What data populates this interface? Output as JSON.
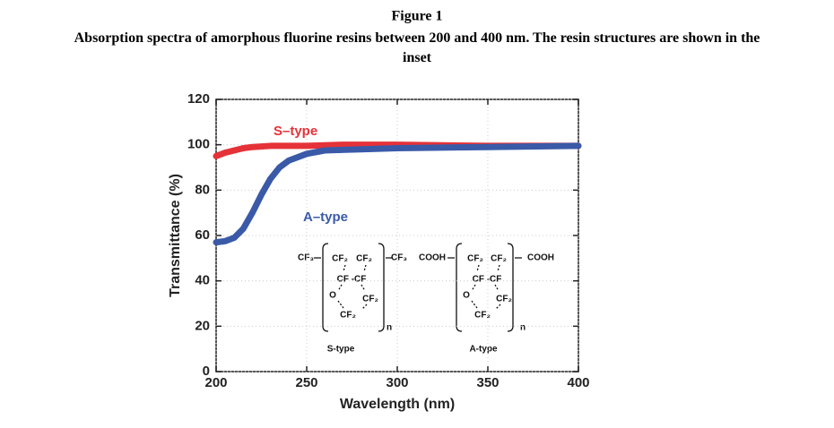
{
  "chart_data": {
    "type": "line",
    "title": "Figure 1",
    "subtitle": "Absorption spectra of amorphous fluorine resins between 200 and 400 nm. The resin structures are shown in the inset",
    "x_label": "Wavelength (nm)",
    "y_label": "Transmittance (%)",
    "xlim": [
      200,
      400
    ],
    "xticks": [
      200,
      250,
      300,
      350,
      400
    ],
    "ylim": [
      0,
      120
    ],
    "yticks": [
      0,
      20,
      40,
      60,
      80,
      100,
      120
    ],
    "grid": true,
    "series": [
      {
        "name": "S–type",
        "color": "#e53238",
        "x": [
          200,
          205,
          210,
          215,
          220,
          230,
          240,
          250,
          270,
          290,
          300,
          320,
          350,
          380,
          400
        ],
        "values": [
          95,
          96.5,
          97.5,
          98.5,
          99,
          99.5,
          99.5,
          99.5,
          100,
          100,
          100,
          99.8,
          99.5,
          99.5,
          99.5
        ]
      },
      {
        "name": "A–type",
        "color": "#3a5aa8",
        "x": [
          200,
          205,
          210,
          215,
          220,
          225,
          230,
          235,
          240,
          250,
          260,
          280,
          300,
          350,
          400
        ],
        "values": [
          57,
          57.5,
          59,
          63,
          70,
          78,
          85,
          90,
          93,
          96,
          97.5,
          98,
          98.5,
          99,
          99.5
        ]
      }
    ],
    "inset": [
      {
        "name": "S-type",
        "labels": [
          "CF₃",
          "CF₂",
          "CF₂",
          "CF₃",
          "CF -CF",
          "O",
          "CF₂",
          "CF₂",
          "n"
        ]
      },
      {
        "name": "A-type",
        "labels": [
          "COOH",
          "CF₂",
          "CF₂",
          "COOH",
          "CF -CF",
          "O",
          "CF₂",
          "CF₂",
          "n"
        ]
      }
    ]
  }
}
